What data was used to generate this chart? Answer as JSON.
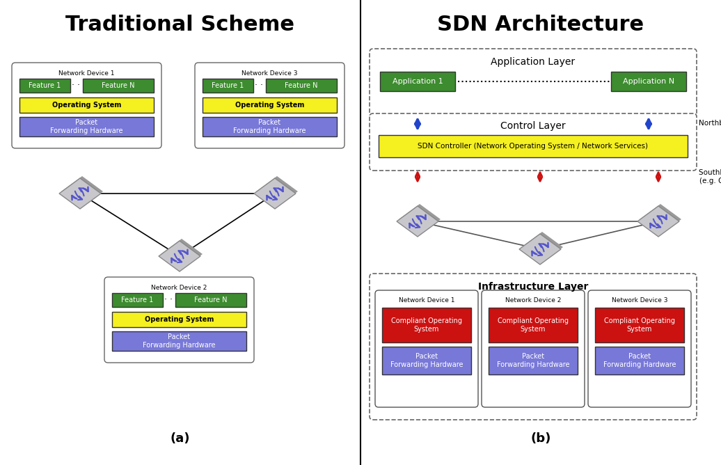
{
  "title_left": "Traditional Scheme",
  "title_right": "SDN Architecture",
  "label_a": "(a)",
  "label_b": "(b)",
  "bg_color": "#ffffff",
  "green_color": "#3d8c2f",
  "yellow_color": "#f5f020",
  "blue_color": "#7878d8",
  "red_color": "#cc1111",
  "dark_text": "#000000",
  "white_text": "#ffffff"
}
